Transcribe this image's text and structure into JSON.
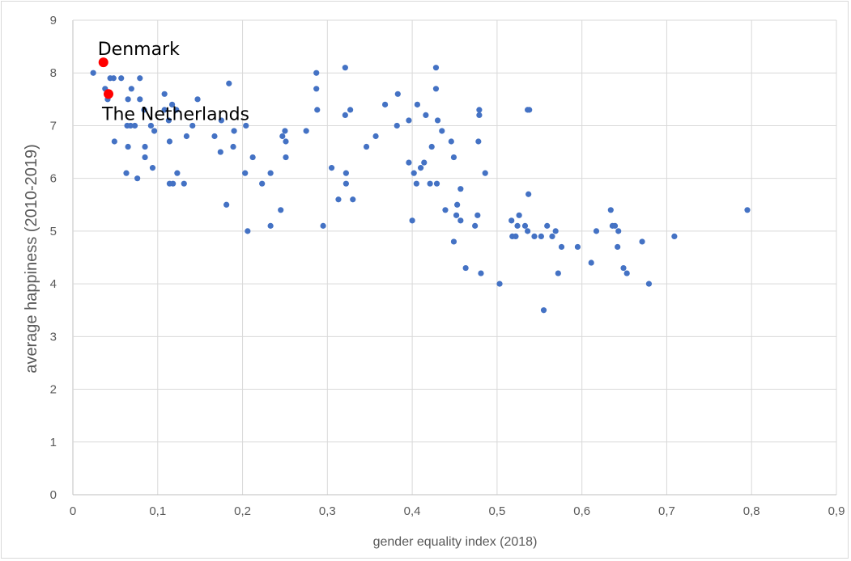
{
  "chart_data": {
    "type": "scatter",
    "xlabel": "gender equality index (2018)",
    "ylabel": "average happiness (2010-2019)",
    "xlim": [
      0,
      0.9
    ],
    "ylim": [
      0,
      9
    ],
    "x_ticks": [
      "0",
      "0,1",
      "0,2",
      "0,3",
      "0,4",
      "0,5",
      "0,6",
      "0,7",
      "0,8",
      "0,9"
    ],
    "y_ticks": [
      "0",
      "1",
      "2",
      "3",
      "4",
      "5",
      "6",
      "7",
      "8",
      "9"
    ],
    "grid": "vertical and horizontal major gridlines",
    "marker_color": "#4472c4",
    "highlight_color": "#ff0000",
    "points": [
      [
        0.024,
        8.0
      ],
      [
        0.038,
        7.7
      ],
      [
        0.044,
        7.6
      ],
      [
        0.041,
        7.5
      ],
      [
        0.044,
        7.9
      ],
      [
        0.048,
        7.9
      ],
      [
        0.057,
        7.9
      ],
      [
        0.049,
        6.7
      ],
      [
        0.063,
        6.1
      ],
      [
        0.064,
        7.0
      ],
      [
        0.065,
        6.6
      ],
      [
        0.065,
        7.5
      ],
      [
        0.068,
        7.0
      ],
      [
        0.069,
        7.7
      ],
      [
        0.073,
        7.0
      ],
      [
        0.076,
        6.0
      ],
      [
        0.079,
        7.5
      ],
      [
        0.079,
        7.9
      ],
      [
        0.084,
        7.3
      ],
      [
        0.085,
        6.4
      ],
      [
        0.085,
        6.6
      ],
      [
        0.092,
        7.0
      ],
      [
        0.094,
        6.2
      ],
      [
        0.096,
        6.9
      ],
      [
        0.108,
        7.6
      ],
      [
        0.108,
        7.3
      ],
      [
        0.113,
        7.1
      ],
      [
        0.114,
        6.7
      ],
      [
        0.114,
        5.9
      ],
      [
        0.117,
        7.4
      ],
      [
        0.118,
        5.9
      ],
      [
        0.122,
        7.3
      ],
      [
        0.123,
        6.1
      ],
      [
        0.131,
        5.9
      ],
      [
        0.134,
        6.8
      ],
      [
        0.141,
        7.0
      ],
      [
        0.147,
        7.5
      ],
      [
        0.167,
        6.8
      ],
      [
        0.174,
        6.5
      ],
      [
        0.175,
        7.1
      ],
      [
        0.181,
        5.5
      ],
      [
        0.184,
        7.8
      ],
      [
        0.189,
        6.6
      ],
      [
        0.19,
        6.9
      ],
      [
        0.203,
        6.1
      ],
      [
        0.204,
        7.0
      ],
      [
        0.206,
        5.0
      ],
      [
        0.212,
        6.4
      ],
      [
        0.223,
        5.9
      ],
      [
        0.233,
        5.1
      ],
      [
        0.233,
        6.1
      ],
      [
        0.245,
        5.4
      ],
      [
        0.247,
        6.8
      ],
      [
        0.25,
        6.9
      ],
      [
        0.251,
        6.4
      ],
      [
        0.251,
        6.7
      ],
      [
        0.275,
        6.9
      ],
      [
        0.287,
        7.7
      ],
      [
        0.287,
        8.0
      ],
      [
        0.288,
        7.3
      ],
      [
        0.295,
        5.1
      ],
      [
        0.305,
        6.2
      ],
      [
        0.313,
        5.6
      ],
      [
        0.321,
        8.1
      ],
      [
        0.321,
        7.2
      ],
      [
        0.322,
        5.9
      ],
      [
        0.322,
        6.1
      ],
      [
        0.327,
        7.3
      ],
      [
        0.33,
        5.6
      ],
      [
        0.346,
        6.6
      ],
      [
        0.357,
        6.8
      ],
      [
        0.368,
        7.4
      ],
      [
        0.382,
        7.0
      ],
      [
        0.383,
        7.6
      ],
      [
        0.396,
        7.1
      ],
      [
        0.396,
        6.3
      ],
      [
        0.4,
        5.2
      ],
      [
        0.402,
        6.1
      ],
      [
        0.405,
        5.9
      ],
      [
        0.406,
        7.4
      ],
      [
        0.41,
        6.2
      ],
      [
        0.414,
        6.3
      ],
      [
        0.416,
        7.2
      ],
      [
        0.421,
        5.9
      ],
      [
        0.423,
        6.6
      ],
      [
        0.428,
        8.1
      ],
      [
        0.428,
        7.7
      ],
      [
        0.429,
        5.9
      ],
      [
        0.43,
        7.1
      ],
      [
        0.435,
        6.9
      ],
      [
        0.439,
        5.4
      ],
      [
        0.446,
        6.7
      ],
      [
        0.449,
        4.8
      ],
      [
        0.449,
        6.4
      ],
      [
        0.452,
        5.3
      ],
      [
        0.453,
        5.5
      ],
      [
        0.457,
        5.8
      ],
      [
        0.457,
        5.2
      ],
      [
        0.463,
        4.3
      ],
      [
        0.474,
        5.1
      ],
      [
        0.477,
        5.3
      ],
      [
        0.478,
        6.7
      ],
      [
        0.479,
        7.2
      ],
      [
        0.479,
        7.3
      ],
      [
        0.481,
        4.2
      ],
      [
        0.486,
        6.1
      ],
      [
        0.503,
        4.0
      ],
      [
        0.517,
        5.2
      ],
      [
        0.518,
        4.9
      ],
      [
        0.522,
        4.9
      ],
      [
        0.524,
        5.1
      ],
      [
        0.526,
        5.3
      ],
      [
        0.533,
        5.1
      ],
      [
        0.536,
        5.0
      ],
      [
        0.536,
        7.3
      ],
      [
        0.538,
        7.3
      ],
      [
        0.537,
        5.7
      ],
      [
        0.544,
        4.9
      ],
      [
        0.552,
        4.9
      ],
      [
        0.555,
        3.5
      ],
      [
        0.559,
        5.1
      ],
      [
        0.565,
        4.9
      ],
      [
        0.569,
        5.0
      ],
      [
        0.572,
        4.2
      ],
      [
        0.576,
        4.7
      ],
      [
        0.595,
        4.7
      ],
      [
        0.611,
        4.4
      ],
      [
        0.617,
        5.0
      ],
      [
        0.634,
        5.4
      ],
      [
        0.636,
        5.1
      ],
      [
        0.639,
        5.1
      ],
      [
        0.642,
        4.7
      ],
      [
        0.643,
        5.0
      ],
      [
        0.649,
        4.3
      ],
      [
        0.653,
        4.2
      ],
      [
        0.671,
        4.8
      ],
      [
        0.679,
        4.0
      ],
      [
        0.709,
        4.9
      ],
      [
        0.795,
        5.4
      ]
    ],
    "highlights": [
      {
        "label": "Denmark",
        "x": 0.036,
        "y": 8.2
      },
      {
        "label": "The Netherlands",
        "x": 0.042,
        "y": 7.6
      }
    ]
  }
}
